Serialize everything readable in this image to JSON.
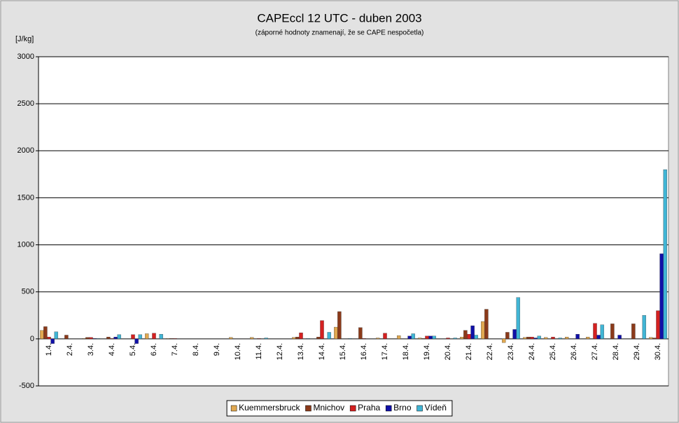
{
  "chart_data": {
    "type": "bar",
    "title": "CAPEccl 12 UTC - duben 2003",
    "subtitle": "(záporné hodnoty znamenají, že se CAPE nespočetla)",
    "y_label": "[J/kg]",
    "categories": [
      "1.4.",
      "2.4.",
      "3.4.",
      "4.4.",
      "5.4.",
      "6.4.",
      "7.4.",
      "8.4.",
      "9.4.",
      "10.4.",
      "11.4.",
      "12.4.",
      "13.4.",
      "14.4.",
      "15.4.",
      "16.4.",
      "17.4.",
      "18.4.",
      "19.4.",
      "20.4.",
      "21.4.",
      "22.4.",
      "23.4.",
      "24.4.",
      "25.4.",
      "26.4.",
      "27.4.",
      "28.4.",
      "29.4.",
      "30.4."
    ],
    "series": [
      {
        "name": "Kuemmersbruck",
        "color": "#e0a850",
        "values": [
          90,
          0,
          5,
          0,
          0,
          55,
          5,
          0,
          0,
          15,
          15,
          0,
          15,
          0,
          125,
          0,
          10,
          35,
          10,
          0,
          20,
          185,
          -40,
          15,
          15,
          20,
          20,
          0,
          0,
          15
        ]
      },
      {
        "name": "Mnichov",
        "color": "#8b3a1a",
        "values": [
          130,
          40,
          15,
          20,
          0,
          0,
          5,
          0,
          0,
          0,
          0,
          0,
          20,
          20,
          290,
          120,
          0,
          0,
          5,
          0,
          90,
          315,
          70,
          20,
          0,
          0,
          0,
          160,
          160,
          10
        ]
      },
      {
        "name": "Praha",
        "color": "#d42020",
        "values": [
          20,
          0,
          15,
          5,
          45,
          60,
          5,
          0,
          0,
          0,
          5,
          0,
          65,
          195,
          0,
          5,
          60,
          0,
          30,
          10,
          50,
          0,
          0,
          20,
          20,
          0,
          165,
          0,
          0,
          300
        ]
      },
      {
        "name": "Brno",
        "color": "#1010a8",
        "values": [
          -50,
          0,
          5,
          20,
          -50,
          0,
          0,
          0,
          0,
          0,
          0,
          0,
          0,
          0,
          0,
          0,
          0,
          30,
          30,
          0,
          140,
          0,
          100,
          10,
          0,
          50,
          40,
          40,
          0,
          905
        ]
      },
      {
        "name": "Vídeň",
        "color": "#40b4d4",
        "values": [
          75,
          0,
          5,
          45,
          45,
          50,
          0,
          0,
          0,
          0,
          10,
          0,
          5,
          70,
          5,
          0,
          0,
          55,
          30,
          10,
          40,
          0,
          440,
          30,
          10,
          0,
          150,
          0,
          250,
          1800
        ]
      }
    ],
    "ylim": [
      -500,
      3000
    ],
    "yticks": [
      -500,
      0,
      500,
      1000,
      1500,
      2000,
      2500,
      3000
    ],
    "grid": true,
    "legend": "bottom"
  }
}
